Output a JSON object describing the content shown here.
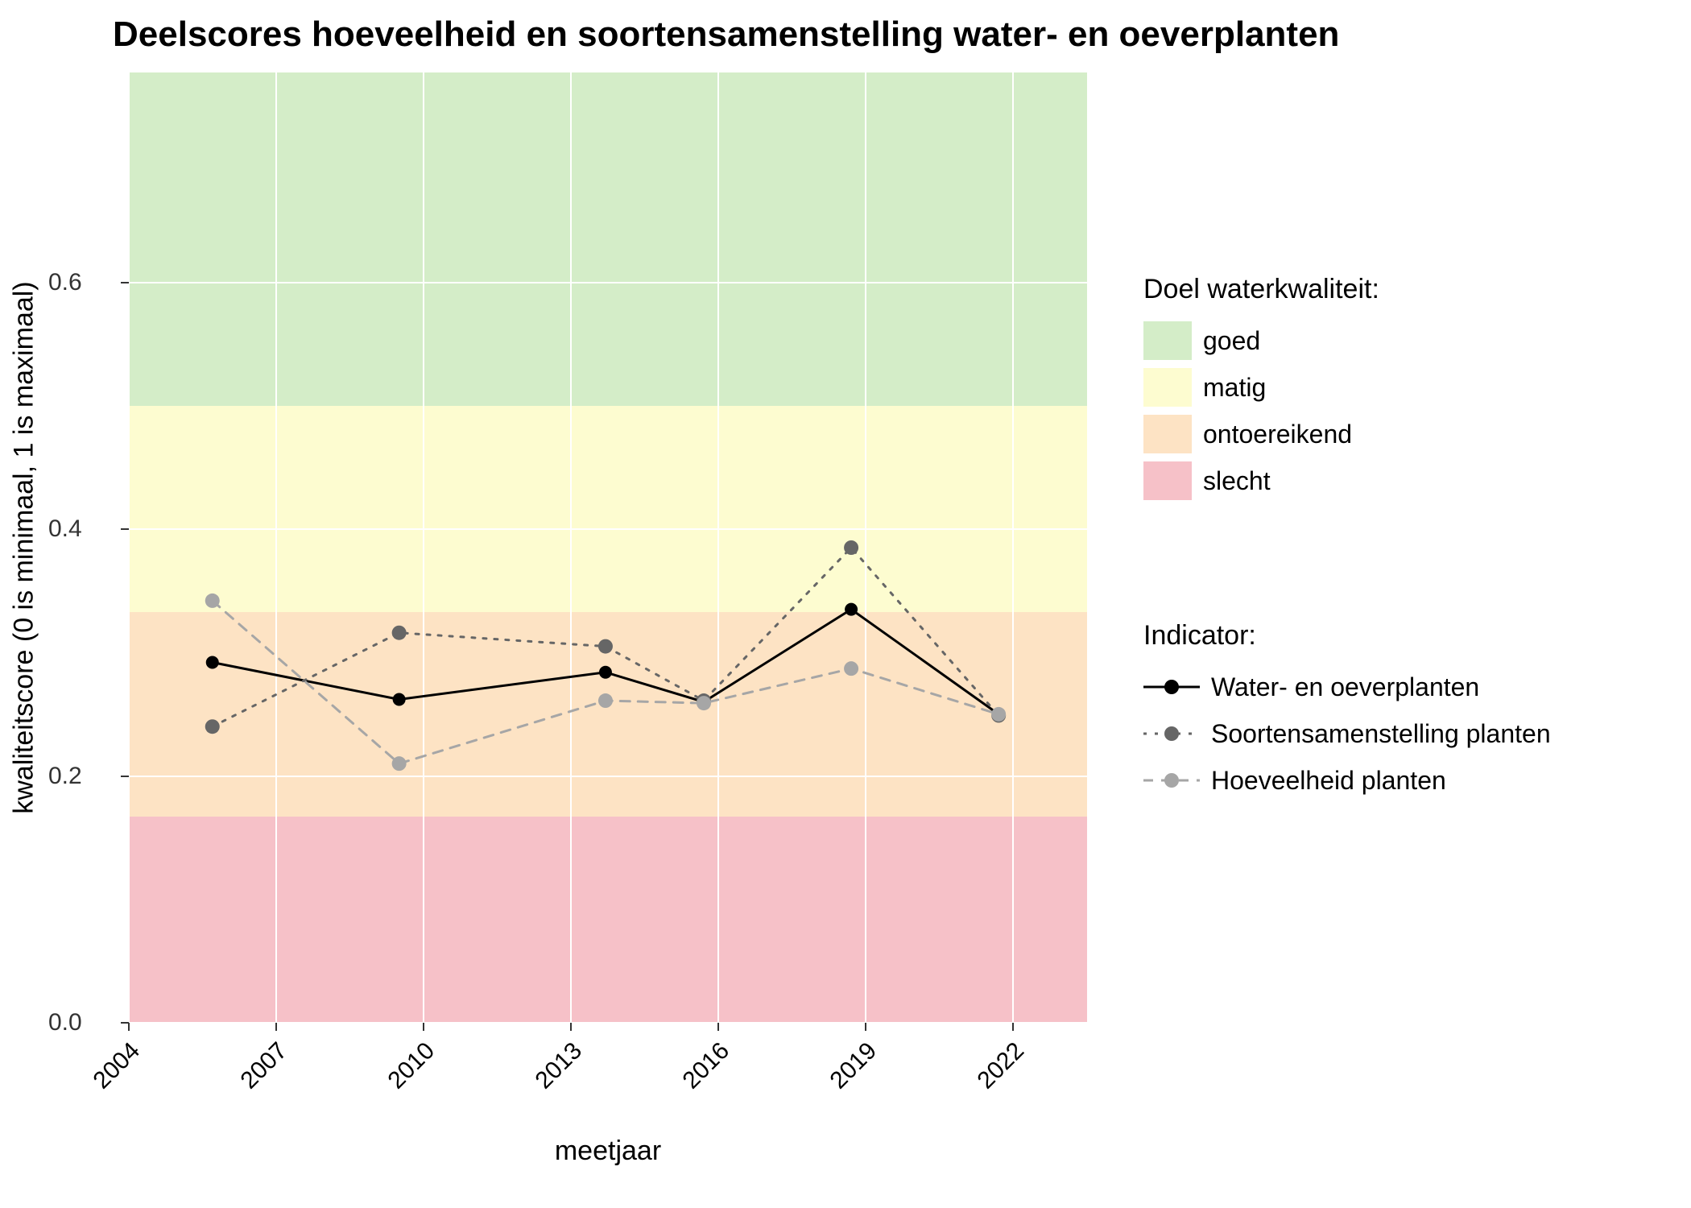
{
  "title": "Deelscores hoeveelheid en soortensamenstelling water- en oeverplanten",
  "xlabel": "meetjaar",
  "ylabel": "kwaliteitscore (0 is minimaal, 1 is maximaal)",
  "chart": {
    "type": "line",
    "background_color": "#ebebeb",
    "grid_color": "#ffffff",
    "xlim": [
      2004,
      2023.5
    ],
    "ylim": [
      0.0,
      0.77
    ],
    "xticks": [
      2004,
      2007,
      2010,
      2013,
      2016,
      2019,
      2022
    ],
    "xtick_labels": [
      "2004",
      "2007",
      "2010",
      "2013",
      "2016",
      "2019",
      "2022"
    ],
    "yticks": [
      0.0,
      0.2,
      0.4,
      0.6
    ],
    "ytick_labels": [
      "0.0",
      "0.2",
      "0.4",
      "0.6"
    ],
    "tick_fontsize": 30,
    "label_fontsize": 34,
    "title_fontsize": 44,
    "bands": [
      {
        "from": 0.0,
        "to": 0.167,
        "color": "#f6c1c8",
        "label": "slecht"
      },
      {
        "from": 0.167,
        "to": 0.333,
        "color": "#fde3c4",
        "label": "ontoereikend"
      },
      {
        "from": 0.333,
        "to": 0.5,
        "color": "#fdfcd0",
        "label": "matig"
      },
      {
        "from": 0.5,
        "to": 0.77,
        "color": "#d4edc8",
        "label": "goed"
      }
    ],
    "series": [
      {
        "name": "Water- en oeverplanten",
        "color": "#000000",
        "marker_color": "#000000",
        "dash": "solid",
        "line_width": 3,
        "marker_size": 16,
        "x": [
          2005.7,
          2009.5,
          2013.7,
          2015.7,
          2018.7,
          2021.7
        ],
        "y": [
          0.292,
          0.262,
          0.284,
          0.26,
          0.335,
          0.25
        ]
      },
      {
        "name": "Soortensamenstelling planten",
        "color": "#666666",
        "marker_color": "#666666",
        "dash": "dotted",
        "line_width": 3,
        "marker_size": 18,
        "x": [
          2005.7,
          2009.5,
          2013.7,
          2015.7,
          2018.7,
          2021.7
        ],
        "y": [
          0.24,
          0.316,
          0.305,
          0.261,
          0.385,
          0.249
        ]
      },
      {
        "name": "Hoeveelheid planten",
        "color": "#a6a6a6",
        "marker_color": "#a6a6a6",
        "dash": "dashed",
        "line_width": 3,
        "marker_size": 18,
        "x": [
          2005.7,
          2009.5,
          2013.7,
          2015.7,
          2018.7,
          2021.7
        ],
        "y": [
          0.342,
          0.21,
          0.261,
          0.259,
          0.287,
          0.25
        ]
      }
    ]
  },
  "legend1": {
    "title": "Doel waterkwaliteit:",
    "items": [
      {
        "label": "goed",
        "color": "#d4edc8"
      },
      {
        "label": "matig",
        "color": "#fdfcd0"
      },
      {
        "label": "ontoereikend",
        "color": "#fde3c4"
      },
      {
        "label": "slecht",
        "color": "#f6c1c8"
      }
    ]
  },
  "legend2": {
    "title": "Indicator:",
    "items": [
      {
        "label": "Water- en oeverplanten",
        "color": "#000000",
        "dash": "solid"
      },
      {
        "label": "Soortensamenstelling planten",
        "color": "#666666",
        "dash": "dotted"
      },
      {
        "label": "Hoeveelheid planten",
        "color": "#a6a6a6",
        "dash": "dashed"
      }
    ]
  }
}
